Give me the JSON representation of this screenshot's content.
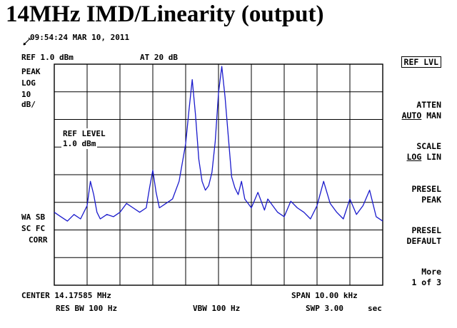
{
  "title": "14MHz IMD/Linearity (output)",
  "timestamp": "09:54:24 MAR 10, 2011",
  "header": {
    "ref": "REF 1.0  dBm",
    "atten": "AT 20  dB"
  },
  "left_labels": {
    "detector": "PEAK",
    "scale_type": "LOG",
    "scale_value": "10",
    "scale_unit": "dB/",
    "wa": "WA SB",
    "sc": "SC FC",
    "corr": "CORR"
  },
  "ref_level_box": {
    "label": "REF LEVEL",
    "value": "1.0  dBm"
  },
  "softkeys": {
    "ref_lvl": "REF LVL",
    "atten": "ATTEN",
    "atten_auto": "AUTO",
    "atten_man": "MAN",
    "scale": "SCALE",
    "scale_log": "LOG",
    "scale_lin": "LIN",
    "presel_peak_1": "PRESEL",
    "presel_peak_2": "PEAK",
    "presel_default_1": "PRESEL",
    "presel_default_2": "DEFAULT",
    "more": "More",
    "page": "1 of 3"
  },
  "footer": {
    "center": "CENTER 14.17585 MHz",
    "span": "SPAN 10.00  kHz",
    "res_bw": "RES BW 100  Hz",
    "vbw": "VBW 100  Hz",
    "swp": "SWP 3.00",
    "swp_unit": "sec"
  },
  "chart_data": {
    "type": "line",
    "title": "14MHz IMD/Linearity (output)",
    "xlabel": "",
    "ylabel": "",
    "x_unit": "kHz offset from center",
    "xlim": [
      -5,
      5
    ],
    "ylim": [
      -99,
      1
    ],
    "grid": true,
    "trace_color": "#1a1acc",
    "series": [
      {
        "name": "",
        "x": [
          -5.0,
          -4.8,
          -4.6,
          -4.4,
          -4.2,
          -4.0,
          -3.9,
          -3.8,
          -3.7,
          -3.6,
          -3.4,
          -3.2,
          -3.0,
          -2.8,
          -2.6,
          -2.4,
          -2.2,
          -2.1,
          -2.0,
          -1.9,
          -1.8,
          -1.6,
          -1.4,
          -1.2,
          -1.0,
          -0.9,
          -0.8,
          -0.7,
          -0.6,
          -0.5,
          -0.4,
          -0.3,
          -0.2,
          -0.1,
          0.0,
          0.1,
          0.2,
          0.3,
          0.4,
          0.5,
          0.6,
          0.7,
          0.8,
          0.9,
          1.0,
          1.2,
          1.4,
          1.5,
          1.6,
          1.8,
          2.0,
          2.2,
          2.4,
          2.6,
          2.8,
          3.0,
          3.2,
          3.4,
          3.6,
          3.8,
          4.0,
          4.2,
          4.4,
          4.6,
          4.8,
          5.0
        ],
        "y": [
          -66,
          -68,
          -70,
          -67,
          -69,
          -63,
          -52,
          -58,
          -66,
          -69,
          -67,
          -68,
          -66,
          -62,
          -64,
          -66,
          -64,
          -55,
          -47,
          -57,
          -64,
          -62,
          -60,
          -52,
          -35,
          -20,
          -6,
          -22,
          -42,
          -52,
          -56,
          -54,
          -48,
          -34,
          -12,
          0,
          -14,
          -32,
          -50,
          -55,
          -58,
          -52,
          -60,
          -62,
          -64,
          -57,
          -65,
          -60,
          -62,
          -66,
          -68,
          -61,
          -64,
          -66,
          -69,
          -63,
          -52,
          -62,
          -66,
          -69,
          -60,
          -67,
          -63,
          -56,
          -68,
          -70
        ]
      }
    ]
  }
}
